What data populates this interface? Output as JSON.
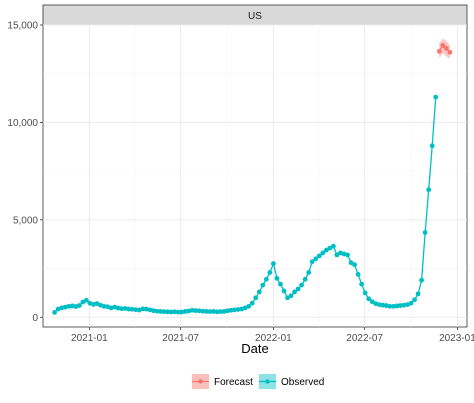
{
  "chart_data": {
    "type": "line",
    "facet_label": "US",
    "xlabel": "Date",
    "ylabel": "",
    "x_ticks": [
      "2021-01",
      "2021-07",
      "2022-01",
      "2022-07",
      "2023-01"
    ],
    "y_ticks": [
      "0",
      "5,000",
      "10,000",
      "15,000"
    ],
    "ylim": [
      -500,
      15000
    ],
    "xlim": [
      "2020-10-01",
      "2023-01-20"
    ],
    "grid": true,
    "legend_position": "bottom",
    "series": [
      {
        "name": "Observed",
        "color": "#00BFC4",
        "points": [
          [
            "2020-10-24",
            250
          ],
          [
            "2020-10-31",
            420
          ],
          [
            "2020-11-07",
            480
          ],
          [
            "2020-11-14",
            520
          ],
          [
            "2020-11-21",
            560
          ],
          [
            "2020-11-28",
            580
          ],
          [
            "2020-12-05",
            550
          ],
          [
            "2020-12-12",
            600
          ],
          [
            "2020-12-19",
            780
          ],
          [
            "2020-12-26",
            870
          ],
          [
            "2021-01-02",
            720
          ],
          [
            "2021-01-09",
            660
          ],
          [
            "2021-01-16",
            700
          ],
          [
            "2021-01-23",
            620
          ],
          [
            "2021-01-30",
            560
          ],
          [
            "2021-02-06",
            540
          ],
          [
            "2021-02-13",
            480
          ],
          [
            "2021-02-20",
            520
          ],
          [
            "2021-02-27",
            470
          ],
          [
            "2021-03-06",
            440
          ],
          [
            "2021-03-13",
            450
          ],
          [
            "2021-03-20",
            420
          ],
          [
            "2021-03-27",
            410
          ],
          [
            "2021-04-03",
            390
          ],
          [
            "2021-04-10",
            370
          ],
          [
            "2021-04-17",
            430
          ],
          [
            "2021-04-24",
            420
          ],
          [
            "2021-05-01",
            380
          ],
          [
            "2021-05-08",
            340
          ],
          [
            "2021-05-15",
            310
          ],
          [
            "2021-05-22",
            300
          ],
          [
            "2021-05-29",
            290
          ],
          [
            "2021-06-05",
            280
          ],
          [
            "2021-06-12",
            270
          ],
          [
            "2021-06-19",
            280
          ],
          [
            "2021-06-26",
            260
          ],
          [
            "2021-07-03",
            270
          ],
          [
            "2021-07-10",
            300
          ],
          [
            "2021-07-17",
            320
          ],
          [
            "2021-07-24",
            360
          ],
          [
            "2021-07-31",
            340
          ],
          [
            "2021-08-07",
            330
          ],
          [
            "2021-08-14",
            310
          ],
          [
            "2021-08-21",
            300
          ],
          [
            "2021-08-28",
            290
          ],
          [
            "2021-09-04",
            300
          ],
          [
            "2021-09-11",
            280
          ],
          [
            "2021-09-18",
            290
          ],
          [
            "2021-09-25",
            300
          ],
          [
            "2021-10-02",
            330
          ],
          [
            "2021-10-09",
            360
          ],
          [
            "2021-10-16",
            380
          ],
          [
            "2021-10-23",
            400
          ],
          [
            "2021-10-30",
            420
          ],
          [
            "2021-11-06",
            480
          ],
          [
            "2021-11-13",
            560
          ],
          [
            "2021-11-20",
            720
          ],
          [
            "2021-11-27",
            1000
          ],
          [
            "2021-12-04",
            1300
          ],
          [
            "2021-12-11",
            1650
          ],
          [
            "2021-12-18",
            1950
          ],
          [
            "2021-12-25",
            2300
          ],
          [
            "2022-01-01",
            2750
          ],
          [
            "2022-01-08",
            2000
          ],
          [
            "2022-01-15",
            1700
          ],
          [
            "2022-01-22",
            1350
          ],
          [
            "2022-01-29",
            1000
          ],
          [
            "2022-02-05",
            1100
          ],
          [
            "2022-02-12",
            1300
          ],
          [
            "2022-02-19",
            1450
          ],
          [
            "2022-02-26",
            1650
          ],
          [
            "2022-03-05",
            1950
          ],
          [
            "2022-03-12",
            2300
          ],
          [
            "2022-03-19",
            2850
          ],
          [
            "2022-03-26",
            3000
          ],
          [
            "2022-04-02",
            3150
          ],
          [
            "2022-04-09",
            3300
          ],
          [
            "2022-04-16",
            3450
          ],
          [
            "2022-04-23",
            3550
          ],
          [
            "2022-04-30",
            3650
          ],
          [
            "2022-05-07",
            3200
          ],
          [
            "2022-05-14",
            3300
          ],
          [
            "2022-05-21",
            3250
          ],
          [
            "2022-05-28",
            3200
          ],
          [
            "2022-06-04",
            2800
          ],
          [
            "2022-06-11",
            2700
          ],
          [
            "2022-06-18",
            2200
          ],
          [
            "2022-06-25",
            1700
          ],
          [
            "2022-07-02",
            1250
          ],
          [
            "2022-07-09",
            950
          ],
          [
            "2022-07-16",
            800
          ],
          [
            "2022-07-23",
            700
          ],
          [
            "2022-07-30",
            650
          ],
          [
            "2022-08-06",
            620
          ],
          [
            "2022-08-13",
            600
          ],
          [
            "2022-08-20",
            560
          ],
          [
            "2022-08-27",
            560
          ],
          [
            "2022-09-03",
            580
          ],
          [
            "2022-09-10",
            600
          ],
          [
            "2022-09-17",
            620
          ],
          [
            "2022-09-24",
            650
          ],
          [
            "2022-10-01",
            720
          ],
          [
            "2022-10-08",
            900
          ],
          [
            "2022-10-15",
            1200
          ],
          [
            "2022-10-22",
            1900
          ],
          [
            "2022-10-29",
            4350
          ],
          [
            "2022-11-05",
            6550
          ],
          [
            "2022-11-12",
            8800
          ],
          [
            "2022-11-19",
            11300
          ]
        ]
      },
      {
        "name": "Forecast",
        "color": "#F8766D",
        "points": [
          [
            "2022-11-26",
            13650
          ],
          [
            "2022-12-03",
            13950
          ],
          [
            "2022-12-10",
            13800
          ],
          [
            "2022-12-17",
            13600
          ]
        ],
        "interval_lower": [
          13300,
          13550,
          13400,
          13250
        ],
        "interval_upper": [
          14050,
          14300,
          14200,
          13950
        ]
      }
    ]
  }
}
